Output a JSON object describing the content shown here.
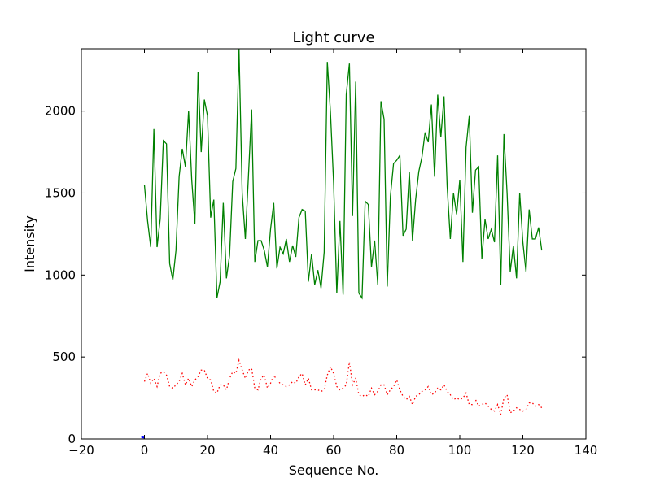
{
  "chart_data": {
    "type": "line",
    "title": "Light curve",
    "xlabel": "Sequence No.",
    "ylabel": "Intensity",
    "xlim": [
      -20,
      140
    ],
    "ylim": [
      0,
      2380
    ],
    "xticks": [
      -20,
      0,
      20,
      40,
      60,
      80,
      100,
      120,
      140
    ],
    "yticks": [
      0,
      500,
      1000,
      1500,
      2000
    ],
    "grid": false,
    "legend": "none",
    "series": [
      {
        "style": "solid",
        "color": "#008000",
        "x": [
          0,
          1,
          2,
          3,
          4,
          5,
          6,
          7,
          8,
          9,
          10,
          11,
          12,
          13,
          14,
          15,
          16,
          17,
          18,
          19,
          20,
          21,
          22,
          23,
          24,
          25,
          26,
          27,
          28,
          29,
          30,
          31,
          32,
          33,
          34,
          35,
          36,
          37,
          38,
          39,
          40,
          41,
          42,
          43,
          44,
          45,
          46,
          47,
          48,
          49,
          50,
          51,
          52,
          53,
          54,
          55,
          56,
          57,
          58,
          59,
          60,
          61,
          62,
          63,
          64,
          65,
          66,
          67,
          68,
          69,
          70,
          71,
          72,
          73,
          74,
          75,
          76,
          77,
          78,
          79,
          80,
          81,
          82,
          83,
          84,
          85,
          86,
          87,
          88,
          89,
          90,
          91,
          92,
          93,
          94,
          95,
          96,
          97,
          98,
          99,
          100,
          101,
          102,
          103,
          104,
          105,
          106,
          107,
          108,
          109,
          110,
          111,
          112,
          113,
          114,
          115,
          116,
          117,
          118,
          119,
          120,
          121,
          122,
          123,
          124,
          125,
          126
        ],
        "y": [
          1550,
          1330,
          1170,
          1890,
          1170,
          1340,
          1820,
          1800,
          1070,
          970,
          1150,
          1600,
          1770,
          1660,
          2000,
          1580,
          1310,
          2240,
          1750,
          2070,
          1970,
          1350,
          1460,
          860,
          960,
          1440,
          980,
          1120,
          1570,
          1650,
          2380,
          1500,
          1220,
          1610,
          2010,
          1080,
          1210,
          1210,
          1150,
          1050,
          1280,
          1440,
          1040,
          1170,
          1130,
          1220,
          1080,
          1180,
          1110,
          1350,
          1400,
          1390,
          960,
          1130,
          940,
          1030,
          920,
          1140,
          2300,
          1990,
          1560,
          890,
          1330,
          880,
          2100,
          2290,
          1360,
          2180,
          890,
          860,
          1450,
          1430,
          1050,
          1210,
          940,
          2060,
          1950,
          930,
          1480,
          1680,
          1700,
          1730,
          1240,
          1280,
          1630,
          1210,
          1460,
          1630,
          1720,
          1870,
          1810,
          2040,
          1600,
          2100,
          1840,
          2090,
          1540,
          1220,
          1500,
          1370,
          1580,
          1080,
          1780,
          1970,
          1380,
          1640,
          1660,
          1100,
          1340,
          1220,
          1280,
          1200,
          1730,
          940,
          1860,
          1500,
          1020,
          1180,
          980,
          1500,
          1200,
          1020,
          1400,
          1220,
          1220,
          1290,
          1150
        ]
      },
      {
        "style": "dotted",
        "color": "#ff0000",
        "x": [
          0,
          1,
          2,
          3,
          4,
          5,
          6,
          7,
          8,
          9,
          10,
          11,
          12,
          13,
          14,
          15,
          16,
          17,
          18,
          19,
          20,
          21,
          22,
          23,
          24,
          25,
          26,
          27,
          28,
          29,
          30,
          31,
          32,
          33,
          34,
          35,
          36,
          37,
          38,
          39,
          40,
          41,
          42,
          43,
          44,
          45,
          46,
          47,
          48,
          49,
          50,
          51,
          52,
          53,
          54,
          55,
          56,
          57,
          58,
          59,
          60,
          61,
          62,
          63,
          64,
          65,
          66,
          67,
          68,
          69,
          70,
          71,
          72,
          73,
          74,
          75,
          76,
          77,
          78,
          79,
          80,
          81,
          82,
          83,
          84,
          85,
          86,
          87,
          88,
          89,
          90,
          91,
          92,
          93,
          94,
          95,
          96,
          97,
          98,
          99,
          100,
          101,
          102,
          103,
          104,
          105,
          106,
          107,
          108,
          109,
          110,
          111,
          112,
          113,
          114,
          115,
          116,
          117,
          118,
          119,
          120,
          121,
          122,
          123,
          124,
          125,
          126
        ],
        "y": [
          350,
          400,
          340,
          370,
          320,
          400,
          410,
          390,
          320,
          310,
          330,
          350,
          400,
          330,
          370,
          320,
          360,
          380,
          420,
          420,
          370,
          360,
          290,
          280,
          330,
          330,
          300,
          370,
          410,
          400,
          480,
          420,
          370,
          420,
          430,
          310,
          300,
          370,
          390,
          310,
          340,
          390,
          360,
          340,
          330,
          320,
          330,
          350,
          340,
          380,
          400,
          330,
          370,
          300,
          300,
          300,
          290,
          300,
          390,
          440,
          400,
          320,
          300,
          310,
          330,
          470,
          330,
          370,
          270,
          260,
          270,
          260,
          310,
          270,
          290,
          330,
          330,
          270,
          300,
          320,
          360,
          300,
          260,
          240,
          260,
          210,
          260,
          270,
          290,
          300,
          320,
          270,
          280,
          310,
          300,
          330,
          290,
          270,
          240,
          250,
          240,
          250,
          280,
          210,
          210,
          240,
          200,
          210,
          220,
          200,
          180,
          170,
          210,
          150,
          250,
          270,
          160,
          170,
          190,
          180,
          170,
          180,
          220,
          220,
          200,
          210,
          190
        ]
      },
      {
        "style": "solid",
        "color": "#0000ff",
        "x": [
          -1,
          -0.5,
          0
        ],
        "y": [
          10,
          12,
          10
        ]
      }
    ]
  }
}
